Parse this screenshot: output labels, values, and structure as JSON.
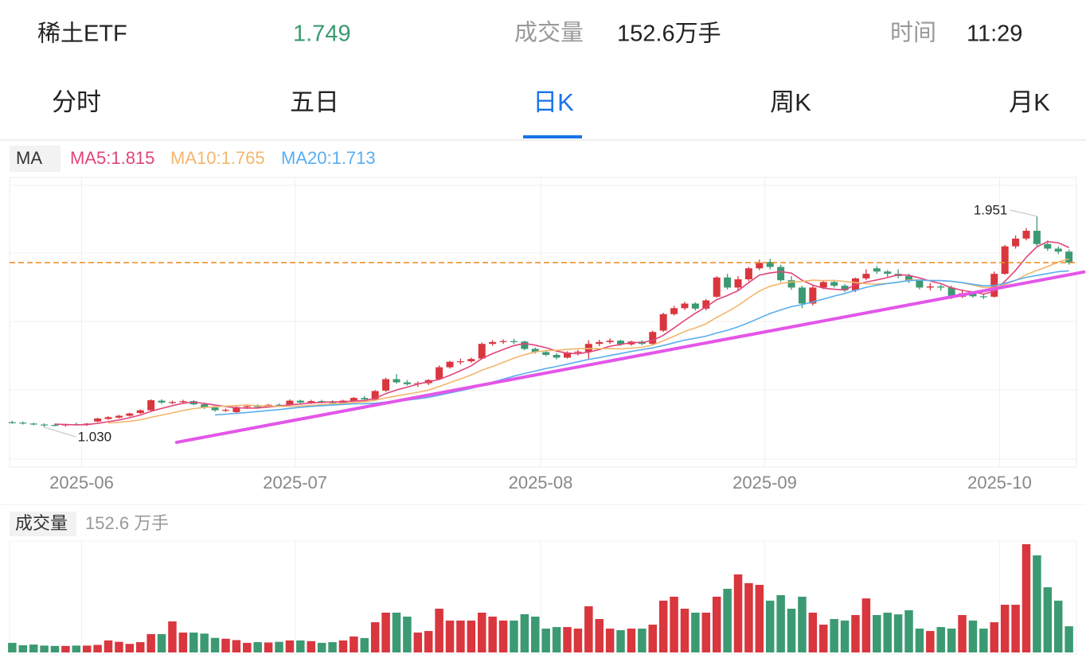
{
  "header": {
    "name": "稀土ETF",
    "price": 1.749,
    "price_color": "#3a9a6e",
    "volume_title": "成交量",
    "volume": "152.6万手",
    "time_title": "时间",
    "time": "11:29"
  },
  "tabs": {
    "items": [
      "分时",
      "五日",
      "日K",
      "周K",
      "月K"
    ],
    "active": 2,
    "active_color": "#1a73e8"
  },
  "chart_data": {
    "type": "candlestick",
    "ma_title": "MA",
    "ma": [
      {
        "label": "MA5:1.815",
        "period": 5,
        "color": "#e0457b"
      },
      {
        "label": "MA10:1.765",
        "period": 10,
        "color": "#f2b66d"
      },
      {
        "label": "MA20:1.713",
        "period": 20,
        "color": "#5aaef0"
      }
    ],
    "up_color": "#d9363e",
    "down_color": "#3c9a73",
    "last_price_color": "#f0902a",
    "xlim": [
      -0.25,
      99.7
    ],
    "ylim": [
      0.863,
      2.114
    ],
    "xticks": [
      {
        "value": 6.5,
        "label": "2025-06"
      },
      {
        "value": 26.5,
        "label": "2025-07"
      },
      {
        "value": 49.5,
        "label": "2025-08"
      },
      {
        "value": 70.5,
        "label": "2025-09"
      },
      {
        "value": 92.5,
        "label": "2025-10"
      }
    ],
    "open": [
      1.052,
      1.05,
      1.046,
      1.042,
      1.04,
      1.038,
      1.043,
      1.04,
      1.055,
      1.066,
      1.072,
      1.08,
      1.092,
      1.104,
      1.146,
      1.138,
      1.14,
      1.144,
      1.13,
      1.116,
      1.104,
      1.096,
      1.118,
      1.122,
      1.12,
      1.128,
      1.128,
      1.146,
      1.138,
      1.144,
      1.14,
      1.136,
      1.146,
      1.158,
      1.15,
      1.19,
      1.24,
      1.226,
      1.218,
      1.222,
      1.24,
      1.292,
      1.316,
      1.318,
      1.33,
      1.394,
      1.402,
      1.406,
      1.404,
      1.372,
      1.358,
      1.346,
      1.334,
      1.356,
      1.36,
      1.394,
      1.402,
      1.408,
      1.392,
      1.404,
      1.394,
      1.452,
      1.524,
      1.55,
      1.57,
      1.548,
      1.6,
      1.684,
      1.64,
      1.676,
      1.724,
      1.752,
      1.73,
      1.672,
      1.64,
      1.57,
      1.64,
      1.664,
      1.648,
      1.628,
      1.68,
      1.724,
      1.71,
      1.7,
      1.69,
      1.67,
      1.64,
      1.645,
      1.64,
      1.6,
      1.615,
      1.602,
      1.6,
      1.7,
      1.82,
      1.854,
      1.888,
      1.83,
      1.81,
      1.797
    ],
    "high": [
      1.058,
      1.055,
      1.05,
      1.047,
      1.046,
      1.045,
      1.05,
      1.048,
      1.072,
      1.078,
      1.084,
      1.094,
      1.108,
      1.152,
      1.152,
      1.146,
      1.15,
      1.148,
      1.136,
      1.122,
      1.112,
      1.122,
      1.128,
      1.13,
      1.132,
      1.134,
      1.152,
      1.15,
      1.15,
      1.15,
      1.148,
      1.15,
      1.162,
      1.166,
      1.192,
      1.246,
      1.262,
      1.236,
      1.23,
      1.24,
      1.3,
      1.32,
      1.33,
      1.334,
      1.4,
      1.41,
      1.414,
      1.416,
      1.408,
      1.378,
      1.364,
      1.354,
      1.362,
      1.368,
      1.41,
      1.412,
      1.418,
      1.412,
      1.408,
      1.41,
      1.452,
      1.53,
      1.56,
      1.578,
      1.576,
      1.59,
      1.69,
      1.7,
      1.69,
      1.73,
      1.762,
      1.766,
      1.74,
      1.69,
      1.648,
      1.648,
      1.672,
      1.674,
      1.656,
      1.684,
      1.72,
      1.734,
      1.716,
      1.72,
      1.7,
      1.676,
      1.66,
      1.652,
      1.648,
      1.626,
      1.624,
      1.612,
      1.71,
      1.826,
      1.868,
      1.9,
      1.951,
      1.846,
      1.82,
      1.806
    ],
    "low": [
      1.045,
      1.042,
      1.038,
      1.03,
      1.034,
      1.033,
      1.038,
      1.036,
      1.052,
      1.062,
      1.068,
      1.076,
      1.088,
      1.1,
      1.132,
      1.13,
      1.132,
      1.126,
      1.11,
      1.098,
      1.096,
      1.09,
      1.11,
      1.114,
      1.116,
      1.118,
      1.124,
      1.134,
      1.132,
      1.134,
      1.13,
      1.132,
      1.142,
      1.148,
      1.146,
      1.184,
      1.22,
      1.212,
      1.206,
      1.214,
      1.236,
      1.286,
      1.304,
      1.312,
      1.326,
      1.386,
      1.394,
      1.394,
      1.366,
      1.352,
      1.34,
      1.326,
      1.33,
      1.344,
      1.33,
      1.384,
      1.394,
      1.386,
      1.386,
      1.388,
      1.39,
      1.446,
      1.518,
      1.542,
      1.54,
      1.54,
      1.596,
      1.632,
      1.628,
      1.668,
      1.716,
      1.72,
      1.664,
      1.63,
      1.55,
      1.562,
      1.634,
      1.64,
      1.62,
      1.62,
      1.672,
      1.7,
      1.686,
      1.68,
      1.66,
      1.632,
      1.628,
      1.626,
      1.59,
      1.594,
      1.596,
      1.59,
      1.596,
      1.696,
      1.81,
      1.846,
      1.82,
      1.8,
      1.786,
      1.74
    ],
    "close": [
      1.05,
      1.046,
      1.042,
      1.04,
      1.038,
      1.043,
      1.04,
      1.046,
      1.068,
      1.074,
      1.08,
      1.09,
      1.104,
      1.148,
      1.138,
      1.14,
      1.144,
      1.13,
      1.116,
      1.104,
      1.106,
      1.118,
      1.122,
      1.12,
      1.128,
      1.124,
      1.146,
      1.138,
      1.144,
      1.14,
      1.136,
      1.146,
      1.158,
      1.152,
      1.188,
      1.24,
      1.226,
      1.218,
      1.222,
      1.236,
      1.292,
      1.316,
      1.318,
      1.328,
      1.394,
      1.402,
      1.406,
      1.404,
      1.372,
      1.358,
      1.346,
      1.334,
      1.356,
      1.36,
      1.394,
      1.402,
      1.408,
      1.392,
      1.404,
      1.394,
      1.446,
      1.524,
      1.55,
      1.57,
      1.548,
      1.584,
      1.684,
      1.64,
      1.676,
      1.724,
      1.748,
      1.73,
      1.672,
      1.64,
      1.57,
      1.64,
      1.664,
      1.648,
      1.628,
      1.68,
      1.7,
      1.71,
      1.7,
      1.69,
      1.67,
      1.64,
      1.645,
      1.64,
      1.6,
      1.615,
      1.602,
      1.6,
      1.7,
      1.82,
      1.854,
      1.888,
      1.83,
      1.81,
      1.797,
      1.749
    ],
    "annotations": [
      {
        "label": "1.951",
        "index": 96,
        "value": 1.951
      },
      {
        "label": "1.030",
        "index": 3,
        "value": 1.03
      }
    ],
    "trendline": {
      "color": "#e356e8",
      "points": [
        [
          15.4,
          0.964
        ],
        [
          100.4,
          1.708
        ]
      ]
    },
    "volume_title": "成交量",
    "volume_label": "152.6 万手",
    "volume_ylim": [
      0,
      640
    ],
    "volume": [
      56,
      42,
      46,
      40,
      38,
      38,
      40,
      40,
      44,
      70,
      62,
      50,
      60,
      107,
      107,
      181,
      116,
      116,
      110,
      85,
      80,
      72,
      56,
      60,
      58,
      62,
      70,
      70,
      66,
      56,
      60,
      70,
      93,
      84,
      176,
      232,
      232,
      209,
      116,
      125,
      255,
      186,
      186,
      186,
      232,
      209,
      186,
      186,
      223,
      209,
      139,
      148,
      148,
      139,
      269,
      195,
      139,
      130,
      139,
      139,
      162,
      302,
      325,
      255,
      232,
      232,
      325,
      371,
      455,
      404,
      394,
      302,
      334,
      255,
      325,
      232,
      162,
      195,
      186,
      218,
      315,
      218,
      232,
      222,
      246,
      139,
      125,
      148,
      139,
      218,
      186,
      139,
      176,
      278,
      278,
      631,
      566,
      380,
      302,
      152.6
    ]
  }
}
